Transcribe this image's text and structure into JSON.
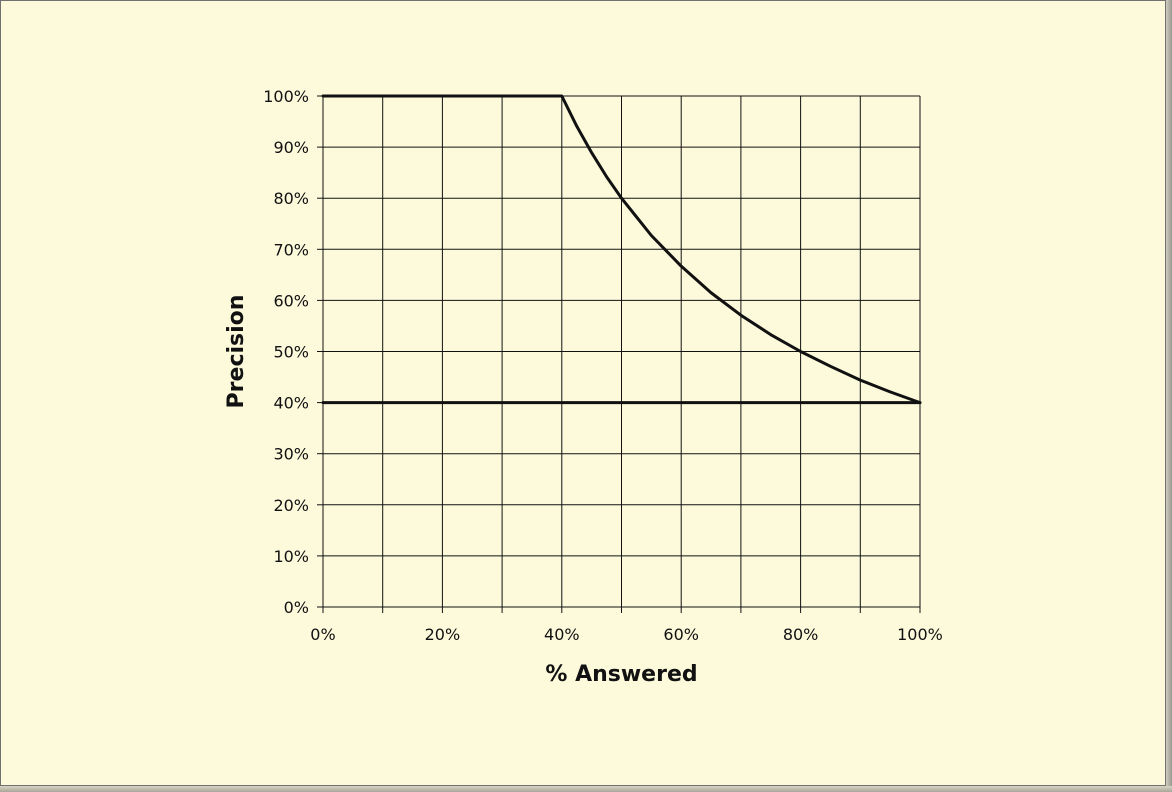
{
  "chart_data": {
    "type": "line",
    "xlabel": "% Answered",
    "ylabel": "Precision",
    "xlim": [
      0,
      100
    ],
    "ylim": [
      0,
      100
    ],
    "grid": true,
    "x_ticks": [
      "0%",
      "20%",
      "40%",
      "60%",
      "80%",
      "100%"
    ],
    "y_ticks": [
      "0%",
      "10%",
      "20%",
      "30%",
      "40%",
      "50%",
      "60%",
      "70%",
      "80%",
      "90%",
      "100%"
    ],
    "series": [
      {
        "x": [
          0,
          40,
          42.5,
          45,
          47.5,
          50,
          55,
          60,
          65,
          70,
          75,
          80,
          85,
          90,
          95,
          100
        ],
        "values": [
          100,
          100,
          94.1,
          88.9,
          84.2,
          80,
          72.7,
          66.7,
          61.5,
          57.1,
          53.3,
          50,
          47.1,
          44.4,
          42.1,
          40
        ]
      },
      {
        "x": [
          0,
          100
        ],
        "values": [
          40,
          40
        ]
      }
    ],
    "colors": {
      "line": "#111111",
      "grid": "#111111",
      "background": "#fdfadc"
    }
  }
}
